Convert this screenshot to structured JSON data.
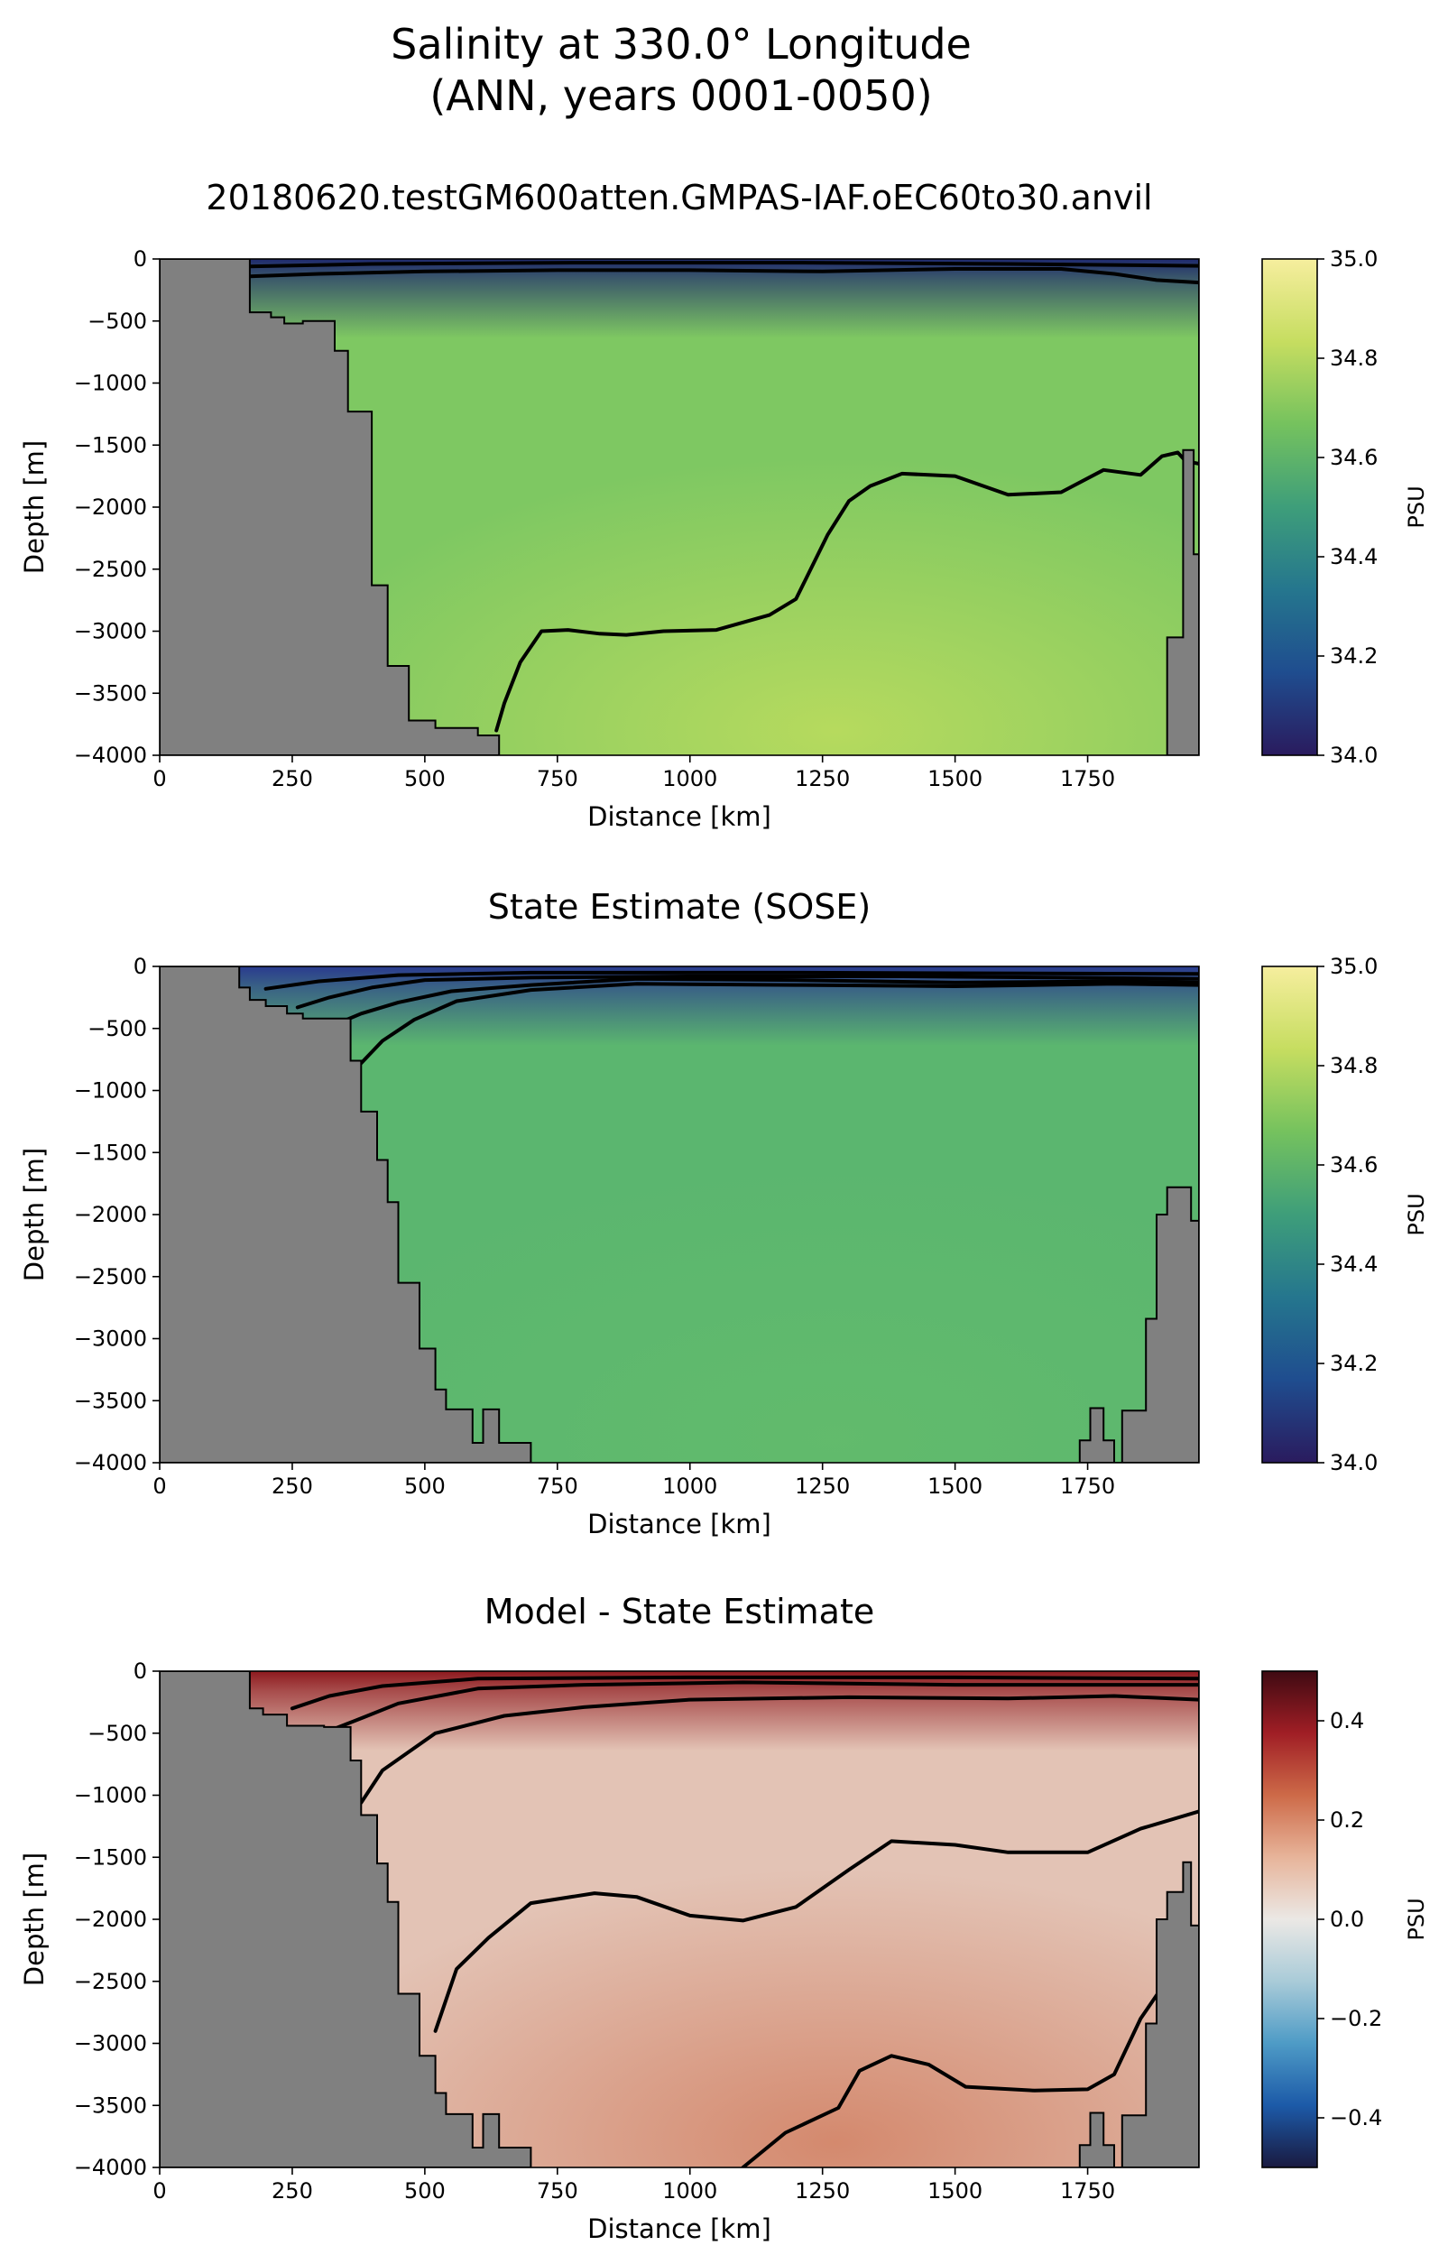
{
  "figure": {
    "title_line1": "Salinity at 330.0° Longitude",
    "title_line2": "(ANN, years 0001-0050)"
  },
  "chart_data": [
    {
      "type": "heatmap",
      "title": "20180620.testGM600atten.GMPAS-IAF.oEC60to30.anvil",
      "xlabel": "Distance [km]",
      "ylabel": "Depth [m]",
      "xlim": [
        0,
        1960
      ],
      "ylim": [
        -4000,
        0
      ],
      "x_ticks": [
        "0",
        "250",
        "500",
        "750",
        "1000",
        "1250",
        "1500",
        "1750"
      ],
      "y_ticks": [
        "0",
        "−500",
        "−1000",
        "−1500",
        "−2000",
        "−2500",
        "−3000",
        "−3500",
        "−4000"
      ],
      "colorbar": {
        "label": "PSU",
        "min": 34.0,
        "max": 35.0,
        "ticks": [
          "34.0",
          "34.2",
          "34.4",
          "34.6",
          "34.8",
          "35.0"
        ],
        "colormap": [
          "#2a1b5e",
          "#1f4d8f",
          "#25768e",
          "#3e9e7a",
          "#75c25e",
          "#c6dd60",
          "#f6ee9e"
        ]
      },
      "field": {
        "background": "#7ec862",
        "deep_highlight": "#b9db5e",
        "surface": "#1f2a6e"
      },
      "bathymetry_left": [
        [
          0,
          0
        ],
        [
          170,
          0
        ],
        [
          170,
          -430
        ],
        [
          210,
          -430
        ],
        [
          210,
          -470
        ],
        [
          235,
          -470
        ],
        [
          235,
          -520
        ],
        [
          270,
          -520
        ],
        [
          270,
          -500
        ],
        [
          330,
          -500
        ],
        [
          330,
          -740
        ],
        [
          355,
          -740
        ],
        [
          355,
          -1230
        ],
        [
          400,
          -1230
        ],
        [
          400,
          -2630
        ],
        [
          430,
          -2630
        ],
        [
          430,
          -3280
        ],
        [
          470,
          -3280
        ],
        [
          470,
          -3720
        ],
        [
          520,
          -3720
        ],
        [
          520,
          -3780
        ],
        [
          600,
          -3780
        ],
        [
          600,
          -3840
        ],
        [
          640,
          -3840
        ],
        [
          640,
          -4000
        ],
        [
          0,
          -4000
        ]
      ],
      "bathymetry_right": [
        [
          1960,
          0
        ],
        [
          1960,
          -2380
        ],
        [
          1950,
          -2380
        ],
        [
          1950,
          -1540
        ],
        [
          1930,
          -1540
        ],
        [
          1930,
          -3050
        ],
        [
          1900,
          -3050
        ],
        [
          1900,
          -4000
        ],
        [
          1960,
          -4000
        ]
      ],
      "contours": [
        [
          [
            170,
            -140
          ],
          [
            300,
            -120
          ],
          [
            500,
            -100
          ],
          [
            750,
            -90
          ],
          [
            1000,
            -90
          ],
          [
            1250,
            -100
          ],
          [
            1500,
            -80
          ],
          [
            1700,
            -80
          ],
          [
            1800,
            -120
          ],
          [
            1880,
            -170
          ],
          [
            1960,
            -190
          ]
        ],
        [
          [
            170,
            -60
          ],
          [
            400,
            -40
          ],
          [
            800,
            -30
          ],
          [
            1200,
            -30
          ],
          [
            1600,
            -40
          ],
          [
            1960,
            -55
          ]
        ],
        [
          [
            635,
            -3800
          ],
          [
            650,
            -3580
          ],
          [
            680,
            -3250
          ],
          [
            720,
            -3000
          ],
          [
            770,
            -2990
          ],
          [
            830,
            -3020
          ],
          [
            880,
            -3030
          ],
          [
            950,
            -3000
          ],
          [
            1050,
            -2990
          ],
          [
            1150,
            -2870
          ],
          [
            1200,
            -2740
          ],
          [
            1260,
            -2220
          ],
          [
            1300,
            -1950
          ],
          [
            1340,
            -1830
          ],
          [
            1400,
            -1730
          ],
          [
            1500,
            -1750
          ],
          [
            1600,
            -1900
          ],
          [
            1700,
            -1880
          ],
          [
            1780,
            -1700
          ],
          [
            1850,
            -1740
          ],
          [
            1890,
            -1590
          ],
          [
            1920,
            -1560
          ],
          [
            1935,
            -1630
          ],
          [
            1960,
            -1650
          ]
        ]
      ]
    },
    {
      "type": "heatmap",
      "title": "State Estimate (SOSE)",
      "xlabel": "Distance [km]",
      "ylabel": "Depth [m]",
      "xlim": [
        0,
        1960
      ],
      "ylim": [
        -4000,
        0
      ],
      "x_ticks": [
        "0",
        "250",
        "500",
        "750",
        "1000",
        "1250",
        "1500",
        "1750"
      ],
      "y_ticks": [
        "0",
        "−500",
        "−1000",
        "−1500",
        "−2000",
        "−2500",
        "−3000",
        "−3500",
        "−4000"
      ],
      "colorbar": {
        "label": "PSU",
        "min": 34.0,
        "max": 35.0,
        "ticks": [
          "34.0",
          "34.2",
          "34.4",
          "34.6",
          "34.8",
          "35.0"
        ],
        "colormap": [
          "#2a1b5e",
          "#1f4d8f",
          "#25768e",
          "#3e9e7a",
          "#75c25e",
          "#c6dd60",
          "#f6ee9e"
        ]
      },
      "field": {
        "background": "#5bb66f",
        "deep_highlight": "#62bb6c",
        "surface": "#2a3b8f"
      },
      "bathymetry_left": [
        [
          0,
          0
        ],
        [
          150,
          0
        ],
        [
          150,
          -170
        ],
        [
          170,
          -170
        ],
        [
          170,
          -270
        ],
        [
          200,
          -270
        ],
        [
          200,
          -320
        ],
        [
          240,
          -320
        ],
        [
          240,
          -380
        ],
        [
          270,
          -380
        ],
        [
          270,
          -420
        ],
        [
          360,
          -420
        ],
        [
          360,
          -760
        ],
        [
          380,
          -760
        ],
        [
          380,
          -1170
        ],
        [
          410,
          -1170
        ],
        [
          410,
          -1560
        ],
        [
          430,
          -1560
        ],
        [
          430,
          -1900
        ],
        [
          450,
          -1900
        ],
        [
          450,
          -2550
        ],
        [
          490,
          -2550
        ],
        [
          490,
          -3080
        ],
        [
          520,
          -3080
        ],
        [
          520,
          -3410
        ],
        [
          540,
          -3410
        ],
        [
          540,
          -3570
        ],
        [
          590,
          -3570
        ],
        [
          590,
          -3840
        ],
        [
          610,
          -3840
        ],
        [
          610,
          -3570
        ],
        [
          640,
          -3570
        ],
        [
          640,
          -3840
        ],
        [
          700,
          -3840
        ],
        [
          700,
          -4000
        ],
        [
          0,
          -4000
        ]
      ],
      "bathymetry_right": [
        [
          1960,
          0
        ],
        [
          1960,
          -2050
        ],
        [
          1945,
          -2050
        ],
        [
          1945,
          -1780
        ],
        [
          1900,
          -1780
        ],
        [
          1900,
          -2000
        ],
        [
          1880,
          -2000
        ],
        [
          1880,
          -2840
        ],
        [
          1860,
          -2840
        ],
        [
          1860,
          -3580
        ],
        [
          1815,
          -3580
        ],
        [
          1815,
          -4000
        ],
        [
          1800,
          -4000
        ],
        [
          1800,
          -3820
        ],
        [
          1780,
          -3820
        ],
        [
          1780,
          -3560
        ],
        [
          1755,
          -3560
        ],
        [
          1755,
          -3820
        ],
        [
          1735,
          -3820
        ],
        [
          1735,
          -4000
        ],
        [
          1960,
          -4000
        ]
      ],
      "contours": [
        [
          [
            380,
            -780
          ],
          [
            420,
            -600
          ],
          [
            480,
            -430
          ],
          [
            560,
            -280
          ],
          [
            700,
            -190
          ],
          [
            900,
            -140
          ],
          [
            1200,
            -150
          ],
          [
            1500,
            -160
          ],
          [
            1800,
            -140
          ],
          [
            1960,
            -150
          ]
        ],
        [
          [
            330,
            -470
          ],
          [
            380,
            -380
          ],
          [
            450,
            -290
          ],
          [
            550,
            -200
          ],
          [
            700,
            -150
          ],
          [
            900,
            -100
          ],
          [
            1200,
            -110
          ],
          [
            1500,
            -130
          ],
          [
            1800,
            -120
          ],
          [
            1960,
            -130
          ]
        ],
        [
          [
            260,
            -330
          ],
          [
            320,
            -250
          ],
          [
            400,
            -170
          ],
          [
            500,
            -110
          ],
          [
            700,
            -90
          ],
          [
            1000,
            -80
          ],
          [
            1400,
            -80
          ],
          [
            1700,
            -90
          ],
          [
            1960,
            -100
          ]
        ],
        [
          [
            200,
            -180
          ],
          [
            300,
            -120
          ],
          [
            450,
            -70
          ],
          [
            700,
            -50
          ],
          [
            1200,
            -50
          ],
          [
            1960,
            -60
          ]
        ]
      ]
    },
    {
      "type": "heatmap",
      "title": "Model - State Estimate",
      "xlabel": "Distance [km]",
      "ylabel": "Depth [m]",
      "xlim": [
        0,
        1960
      ],
      "ylim": [
        -4000,
        0
      ],
      "x_ticks": [
        "0",
        "250",
        "500",
        "750",
        "1000",
        "1250",
        "1500",
        "1750"
      ],
      "y_ticks": [
        "0",
        "−500",
        "−1000",
        "−1500",
        "−2000",
        "−2500",
        "−3000",
        "−3500",
        "−4000"
      ],
      "colorbar": {
        "label": "PSU",
        "min": -0.5,
        "max": 0.5,
        "ticks": [
          "−0.4",
          "−0.2",
          "0.0",
          "0.2",
          "0.4"
        ],
        "colormap": [
          "#1a1a40",
          "#1c5aa8",
          "#4e9bc6",
          "#a9cbd8",
          "#ebe8e5",
          "#e7b49a",
          "#cd6a48",
          "#a01e25",
          "#3f0a12"
        ]
      },
      "field": {
        "background": "#e3c3b5",
        "deep_highlight": "#d3866a",
        "surface": "#8e1a1f"
      },
      "bathymetry_left": [
        [
          0,
          0
        ],
        [
          170,
          0
        ],
        [
          170,
          -300
        ],
        [
          195,
          -300
        ],
        [
          195,
          -350
        ],
        [
          240,
          -350
        ],
        [
          240,
          -440
        ],
        [
          310,
          -440
        ],
        [
          310,
          -450
        ],
        [
          360,
          -450
        ],
        [
          360,
          -720
        ],
        [
          380,
          -720
        ],
        [
          380,
          -1160
        ],
        [
          410,
          -1160
        ],
        [
          410,
          -1550
        ],
        [
          430,
          -1550
        ],
        [
          430,
          -1860
        ],
        [
          450,
          -1860
        ],
        [
          450,
          -2600
        ],
        [
          490,
          -2600
        ],
        [
          490,
          -3100
        ],
        [
          520,
          -3100
        ],
        [
          520,
          -3400
        ],
        [
          540,
          -3400
        ],
        [
          540,
          -3570
        ],
        [
          590,
          -3570
        ],
        [
          590,
          -3840
        ],
        [
          610,
          -3840
        ],
        [
          610,
          -3570
        ],
        [
          640,
          -3570
        ],
        [
          640,
          -3840
        ],
        [
          700,
          -3840
        ],
        [
          700,
          -4000
        ],
        [
          0,
          -4000
        ]
      ],
      "bathymetry_right": [
        [
          1960,
          0
        ],
        [
          1960,
          -2050
        ],
        [
          1945,
          -2050
        ],
        [
          1945,
          -1540
        ],
        [
          1930,
          -1540
        ],
        [
          1930,
          -1780
        ],
        [
          1900,
          -1780
        ],
        [
          1900,
          -2000
        ],
        [
          1880,
          -2000
        ],
        [
          1880,
          -2840
        ],
        [
          1860,
          -2840
        ],
        [
          1860,
          -3580
        ],
        [
          1815,
          -3580
        ],
        [
          1815,
          -4000
        ],
        [
          1800,
          -4000
        ],
        [
          1800,
          -3820
        ],
        [
          1780,
          -3820
        ],
        [
          1780,
          -3560
        ],
        [
          1755,
          -3560
        ],
        [
          1755,
          -3820
        ],
        [
          1735,
          -3820
        ],
        [
          1735,
          -4000
        ],
        [
          1960,
          -4000
        ]
      ],
      "contours": [
        [
          [
            1100,
            -4000
          ],
          [
            1180,
            -3720
          ],
          [
            1280,
            -3520
          ],
          [
            1320,
            -3220
          ],
          [
            1380,
            -3100
          ],
          [
            1450,
            -3170
          ],
          [
            1520,
            -3350
          ],
          [
            1650,
            -3380
          ],
          [
            1750,
            -3370
          ],
          [
            1800,
            -3250
          ],
          [
            1850,
            -2800
          ],
          [
            1890,
            -2550
          ]
        ],
        [
          [
            520,
            -2900
          ],
          [
            560,
            -2400
          ],
          [
            620,
            -2150
          ],
          [
            700,
            -1870
          ],
          [
            820,
            -1790
          ],
          [
            900,
            -1820
          ],
          [
            1000,
            -1970
          ],
          [
            1100,
            -2010
          ],
          [
            1200,
            -1900
          ],
          [
            1300,
            -1600
          ],
          [
            1380,
            -1370
          ],
          [
            1500,
            -1400
          ],
          [
            1600,
            -1460
          ],
          [
            1750,
            -1460
          ],
          [
            1850,
            -1270
          ],
          [
            1960,
            -1130
          ]
        ],
        [
          [
            380,
            -1060
          ],
          [
            420,
            -800
          ],
          [
            520,
            -500
          ],
          [
            650,
            -360
          ],
          [
            800,
            -290
          ],
          [
            1000,
            -230
          ],
          [
            1300,
            -210
          ],
          [
            1600,
            -220
          ],
          [
            1800,
            -200
          ],
          [
            1960,
            -230
          ]
        ],
        [
          [
            320,
            -480
          ],
          [
            380,
            -380
          ],
          [
            450,
            -260
          ],
          [
            600,
            -140
          ],
          [
            800,
            -110
          ],
          [
            1100,
            -90
          ],
          [
            1500,
            -110
          ],
          [
            1960,
            -110
          ]
        ],
        [
          [
            250,
            -300
          ],
          [
            320,
            -200
          ],
          [
            420,
            -120
          ],
          [
            600,
            -60
          ],
          [
            1000,
            -50
          ],
          [
            1500,
            -50
          ],
          [
            1960,
            -60
          ]
        ]
      ]
    }
  ]
}
